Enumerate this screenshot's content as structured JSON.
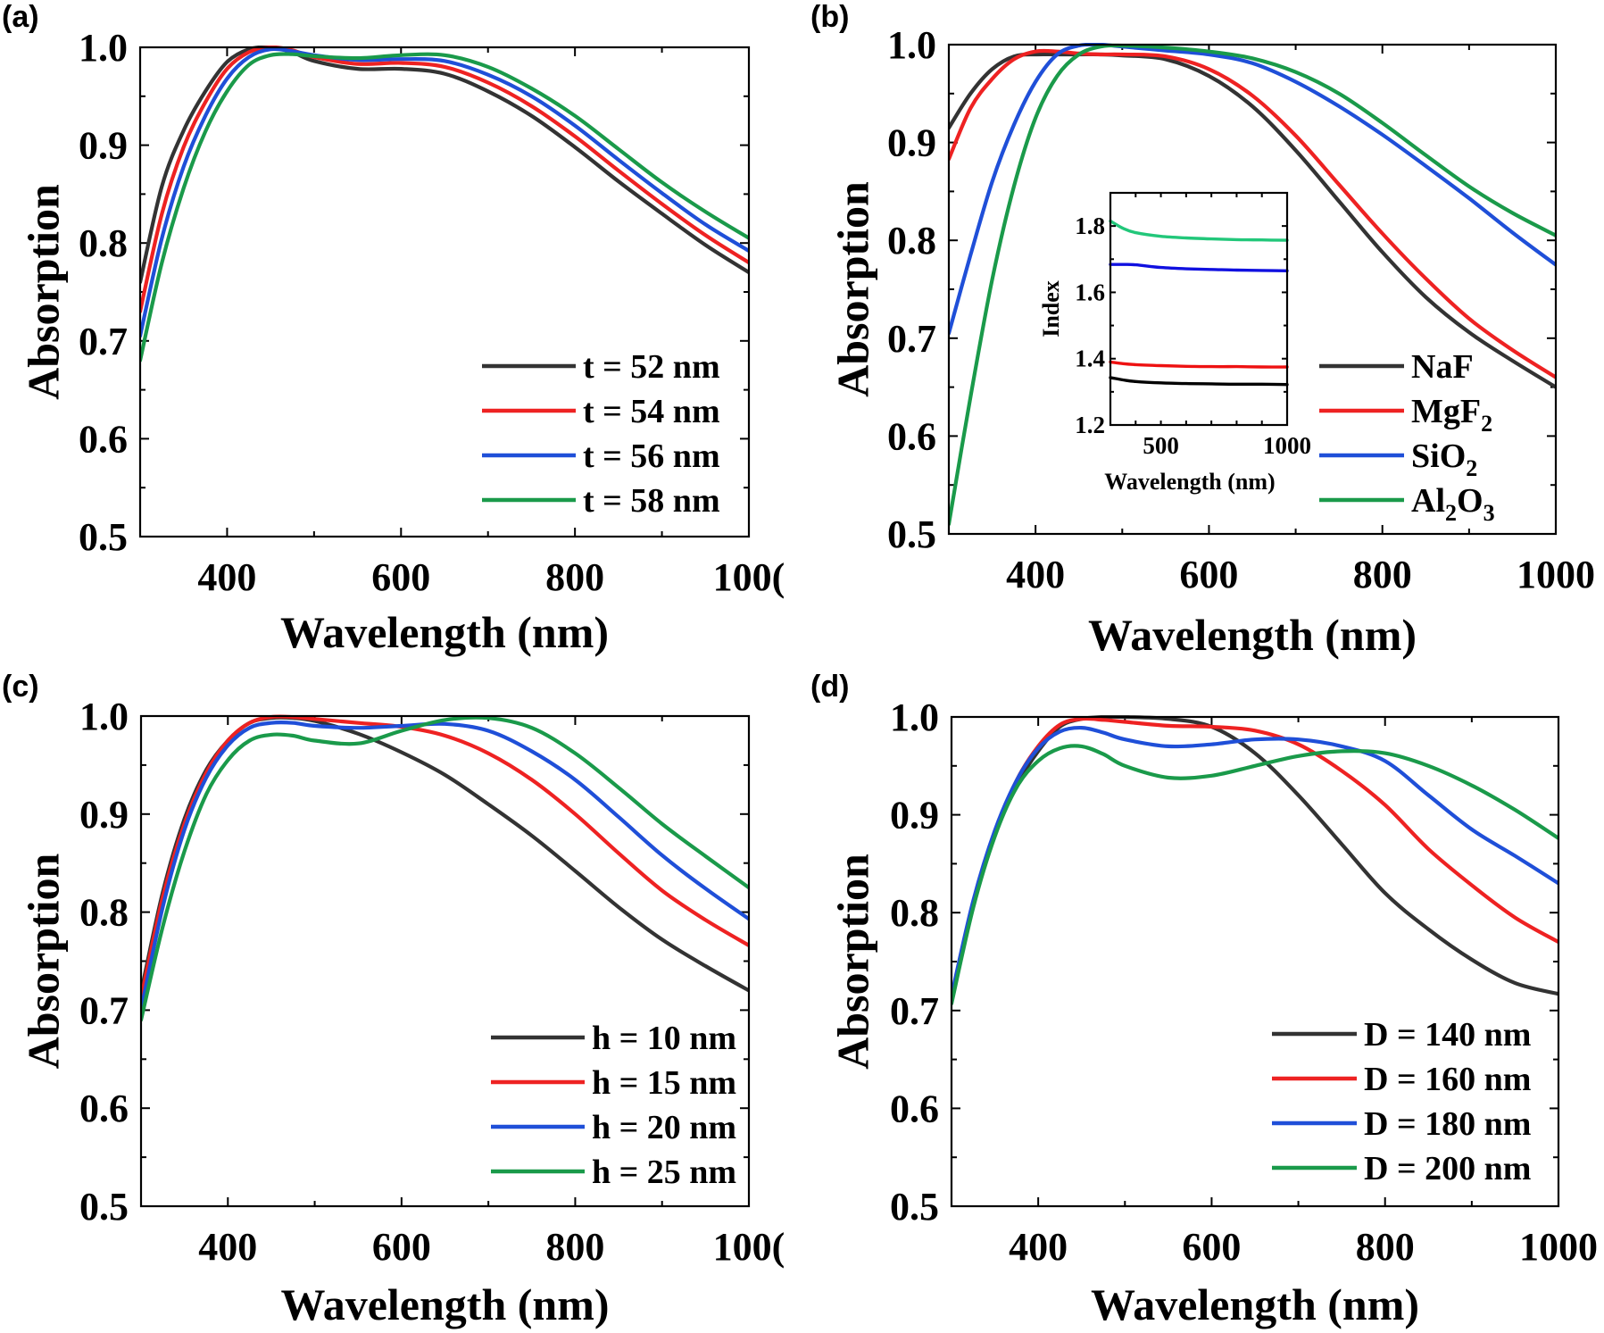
{
  "colors": {
    "black": "#333333",
    "red": "#ee2222",
    "blue": "#1f4fd8",
    "green": "#1a9a4a",
    "inset_black": "#000000",
    "inset_red": "#ee1111",
    "inset_blue": "#1010e0",
    "inset_green": "#22c77a"
  },
  "chart_data": [
    {
      "id": "a",
      "panel_label": "(a)",
      "type": "line",
      "title": "",
      "xlabel": "Wavelength (nm)",
      "ylabel": "Absorption",
      "xlim": [
        300,
        1000
      ],
      "ylim": [
        0.5,
        1.0
      ],
      "xticks": [
        400,
        600,
        800,
        1000
      ],
      "xtick_labels": [
        "400",
        "600",
        "800",
        "100("
      ],
      "yticks": [
        0.5,
        0.6,
        0.7,
        0.8,
        0.9,
        1.0
      ],
      "ytick_labels": [
        "0.5",
        "0.6",
        "0.7",
        "0.8",
        "0.9",
        "1.0"
      ],
      "legend_position": "bottom-right",
      "x": [
        300,
        325,
        350,
        375,
        400,
        425,
        450,
        475,
        500,
        550,
        600,
        650,
        700,
        750,
        800,
        850,
        900,
        950,
        1000
      ],
      "series": [
        {
          "name": "t = 52 nm",
          "color_key": "black",
          "values": [
            0.76,
            0.858,
            0.915,
            0.955,
            0.985,
            0.998,
            1.0,
            0.995,
            0.986,
            0.978,
            0.978,
            0.973,
            0.955,
            0.93,
            0.898,
            0.863,
            0.83,
            0.798,
            0.77
          ]
        },
        {
          "name": "t = 54 nm",
          "color_key": "red",
          "values": [
            0.73,
            0.83,
            0.898,
            0.944,
            0.978,
            0.995,
            1.0,
            0.997,
            0.99,
            0.983,
            0.984,
            0.98,
            0.964,
            0.94,
            0.909,
            0.874,
            0.84,
            0.808,
            0.78
          ]
        },
        {
          "name": "t = 56 nm",
          "color_key": "blue",
          "values": [
            0.705,
            0.805,
            0.878,
            0.93,
            0.968,
            0.99,
            0.998,
            0.996,
            0.992,
            0.987,
            0.988,
            0.986,
            0.972,
            0.95,
            0.92,
            0.885,
            0.851,
            0.819,
            0.792
          ]
        },
        {
          "name": "t = 58 nm",
          "color_key": "green",
          "values": [
            0.68,
            0.78,
            0.856,
            0.914,
            0.955,
            0.982,
            0.992,
            0.993,
            0.991,
            0.989,
            0.992,
            0.992,
            0.98,
            0.958,
            0.93,
            0.896,
            0.862,
            0.832,
            0.805
          ]
        }
      ]
    },
    {
      "id": "b",
      "panel_label": "(b)",
      "type": "line",
      "title": "",
      "xlabel": "Wavelength (nm)",
      "ylabel": "Absorption",
      "xlim": [
        300,
        1000
      ],
      "ylim": [
        0.5,
        1.0
      ],
      "xticks": [
        400,
        600,
        800,
        1000
      ],
      "xtick_labels": [
        "400",
        "600",
        "800",
        "1000"
      ],
      "yticks": [
        0.5,
        0.6,
        0.7,
        0.8,
        0.9,
        1.0
      ],
      "ytick_labels": [
        "0.5",
        "0.6",
        "0.7",
        "0.8",
        "0.9",
        "1.0"
      ],
      "legend_position": "bottom-right",
      "x": [
        300,
        325,
        350,
        375,
        400,
        425,
        450,
        475,
        500,
        550,
        600,
        650,
        700,
        750,
        800,
        850,
        900,
        950,
        1000
      ],
      "series": [
        {
          "name": "NaF",
          "label_parts": [
            [
              "NaF",
              ""
            ]
          ],
          "color_key": "black",
          "values": [
            0.915,
            0.95,
            0.975,
            0.988,
            0.99,
            0.99,
            0.99,
            0.99,
            0.989,
            0.985,
            0.968,
            0.937,
            0.892,
            0.84,
            0.788,
            0.742,
            0.706,
            0.677,
            0.65
          ]
        },
        {
          "name": "MgF2",
          "label_parts": [
            [
              "MgF",
              ""
            ],
            [
              "2",
              "sub"
            ]
          ],
          "color_key": "red",
          "values": [
            0.883,
            0.935,
            0.965,
            0.985,
            0.993,
            0.993,
            0.991,
            0.99,
            0.99,
            0.988,
            0.975,
            0.948,
            0.907,
            0.857,
            0.807,
            0.761,
            0.72,
            0.688,
            0.66
          ]
        },
        {
          "name": "SiO2",
          "label_parts": [
            [
              "SiO",
              ""
            ],
            [
              "2",
              "sub"
            ]
          ],
          "color_key": "blue",
          "values": [
            0.705,
            0.785,
            0.86,
            0.918,
            0.962,
            0.99,
            0.999,
            1.0,
            0.998,
            0.994,
            0.99,
            0.981,
            0.962,
            0.937,
            0.908,
            0.876,
            0.843,
            0.808,
            0.775
          ]
        },
        {
          "name": "Al2O3",
          "label_parts": [
            [
              "Al",
              ""
            ],
            [
              "2",
              "sub"
            ],
            [
              "O",
              ""
            ],
            [
              "3",
              "sub"
            ]
          ],
          "color_key": "green",
          "values": [
            0.51,
            0.64,
            0.76,
            0.855,
            0.925,
            0.968,
            0.99,
            0.998,
            0.999,
            0.997,
            0.993,
            0.986,
            0.972,
            0.95,
            0.92,
            0.887,
            0.855,
            0.828,
            0.805
          ]
        }
      ],
      "inset": {
        "type": "line",
        "xlabel": "Wavelength (nm)",
        "ylabel": "Index",
        "xlim": [
          300,
          1000
        ],
        "ylim": [
          1.2,
          1.9
        ],
        "xticks": [
          500,
          1000
        ],
        "xtick_labels": [
          "500",
          "1000"
        ],
        "yticks": [
          1.2,
          1.4,
          1.6,
          1.8
        ],
        "ytick_labels": [
          "1.2",
          "1.4",
          "1.6",
          "1.8"
        ],
        "x": [
          300,
          350,
          400,
          500,
          600,
          700,
          800,
          900,
          1000
        ],
        "series": [
          {
            "name": "NaF",
            "color_key": "inset_black",
            "values": [
              1.343,
              1.336,
              1.331,
              1.327,
              1.325,
              1.324,
              1.323,
              1.323,
              1.322
            ]
          },
          {
            "name": "MgF2",
            "color_key": "inset_red",
            "values": [
              1.39,
              1.385,
              1.382,
              1.379,
              1.377,
              1.376,
              1.376,
              1.375,
              1.375
            ]
          },
          {
            "name": "SiO2",
            "color_key": "inset_blue",
            "values": [
              1.684,
              1.684,
              1.683,
              1.675,
              1.671,
              1.669,
              1.667,
              1.666,
              1.665
            ]
          },
          {
            "name": "Al2O3",
            "color_key": "inset_green",
            "values": [
              1.815,
              1.793,
              1.78,
              1.769,
              1.764,
              1.761,
              1.759,
              1.758,
              1.757
            ]
          }
        ]
      }
    },
    {
      "id": "c",
      "panel_label": "(c)",
      "type": "line",
      "title": "",
      "xlabel": "Wavelength (nm)",
      "ylabel": "Absorption",
      "xlim": [
        300,
        1000
      ],
      "ylim": [
        0.5,
        1.0
      ],
      "xticks": [
        400,
        600,
        800,
        1000
      ],
      "xtick_labels": [
        "400",
        "600",
        "800",
        "100("
      ],
      "yticks": [
        0.5,
        0.6,
        0.7,
        0.8,
        0.9,
        1.0
      ],
      "ytick_labels": [
        "0.5",
        "0.6",
        "0.7",
        "0.8",
        "0.9",
        "1.0"
      ],
      "legend_position": "bottom-right",
      "x": [
        300,
        325,
        350,
        375,
        400,
        425,
        450,
        475,
        500,
        550,
        600,
        650,
        700,
        750,
        800,
        850,
        900,
        950,
        1000
      ],
      "series": [
        {
          "name": "h = 10 nm",
          "color_key": "black",
          "values": [
            0.718,
            0.82,
            0.895,
            0.945,
            0.975,
            0.993,
            0.998,
            0.998,
            0.995,
            0.982,
            0.963,
            0.94,
            0.91,
            0.878,
            0.842,
            0.805,
            0.772,
            0.745,
            0.72
          ]
        },
        {
          "name": "h = 15 nm",
          "color_key": "red",
          "values": [
            0.712,
            0.815,
            0.89,
            0.942,
            0.975,
            0.993,
            0.999,
            0.999,
            0.997,
            0.993,
            0.989,
            0.98,
            0.962,
            0.935,
            0.9,
            0.86,
            0.822,
            0.792,
            0.766
          ]
        },
        {
          "name": "h = 20 nm",
          "color_key": "blue",
          "values": [
            0.7,
            0.805,
            0.884,
            0.937,
            0.97,
            0.988,
            0.993,
            0.993,
            0.99,
            0.988,
            0.99,
            0.992,
            0.985,
            0.964,
            0.935,
            0.897,
            0.858,
            0.824,
            0.793
          ]
        },
        {
          "name": "h = 25 nm",
          "color_key": "green",
          "values": [
            0.69,
            0.785,
            0.862,
            0.92,
            0.955,
            0.975,
            0.981,
            0.98,
            0.975,
            0.972,
            0.985,
            0.996,
            0.998,
            0.988,
            0.962,
            0.927,
            0.89,
            0.857,
            0.825
          ]
        }
      ]
    },
    {
      "id": "d",
      "panel_label": "(d)",
      "type": "line",
      "title": "",
      "xlabel": "Wavelength (nm)",
      "ylabel": "Absorption",
      "xlim": [
        300,
        1000
      ],
      "ylim": [
        0.5,
        1.0
      ],
      "xticks": [
        400,
        600,
        800,
        1000
      ],
      "xtick_labels": [
        "400",
        "600",
        "800",
        "1000"
      ],
      "yticks": [
        0.5,
        0.6,
        0.7,
        0.8,
        0.9,
        1.0
      ],
      "ytick_labels": [
        "0.5",
        "0.6",
        "0.7",
        "0.8",
        "0.9",
        "1.0"
      ],
      "legend_position": "bottom-right",
      "x": [
        300,
        325,
        350,
        375,
        400,
        425,
        450,
        475,
        500,
        550,
        600,
        650,
        700,
        750,
        800,
        850,
        900,
        950,
        1000
      ],
      "series": [
        {
          "name": "D = 140 nm",
          "color_key": "black",
          "values": [
            0.713,
            0.81,
            0.88,
            0.93,
            0.965,
            0.99,
            0.998,
            1.0,
            1.0,
            0.998,
            0.99,
            0.963,
            0.92,
            0.87,
            0.82,
            0.783,
            0.752,
            0.728,
            0.717
          ]
        },
        {
          "name": "D = 160 nm",
          "color_key": "red",
          "values": [
            0.713,
            0.81,
            0.882,
            0.935,
            0.97,
            0.992,
            0.998,
            0.997,
            0.995,
            0.991,
            0.99,
            0.986,
            0.972,
            0.945,
            0.91,
            0.865,
            0.828,
            0.795,
            0.77
          ]
        },
        {
          "name": "D = 180 nm",
          "color_key": "blue",
          "values": [
            0.715,
            0.812,
            0.884,
            0.935,
            0.968,
            0.985,
            0.989,
            0.984,
            0.977,
            0.97,
            0.972,
            0.977,
            0.977,
            0.97,
            0.955,
            0.92,
            0.885,
            0.858,
            0.83
          ]
        },
        {
          "name": "D = 200 nm",
          "color_key": "green",
          "values": [
            0.707,
            0.805,
            0.878,
            0.928,
            0.955,
            0.968,
            0.97,
            0.962,
            0.95,
            0.938,
            0.94,
            0.95,
            0.96,
            0.965,
            0.963,
            0.95,
            0.93,
            0.905,
            0.876
          ]
        }
      ]
    }
  ]
}
